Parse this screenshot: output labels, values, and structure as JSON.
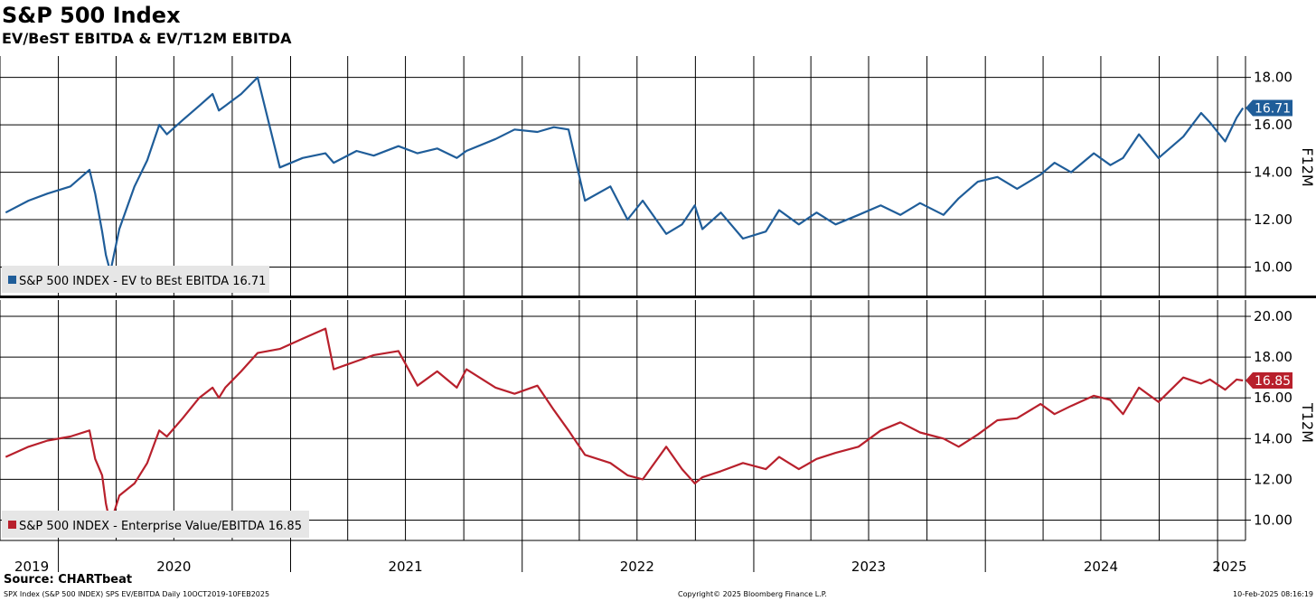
{
  "title": "S&P 500 Index",
  "subtitle": "EV/BeST EBITDA & EV/T12M EBITDA",
  "source": "Source: CHARTbeat",
  "footer": {
    "left": "SPX Index (S&P 500 INDEX) SPS EV/EBITDA  Daily 10OCT2019-10FEB2025",
    "center": "Copyright© 2025 Bloomberg Finance L.P.",
    "right": "10-Feb-2025 08:16:19"
  },
  "colors": {
    "top": "#1f5d99",
    "bottom": "#b8202c"
  },
  "chart_data": [
    {
      "type": "line",
      "axis_title": "F12M",
      "ylim": [
        8.8,
        18.9
      ],
      "yticks": [
        "18.00",
        "16.00",
        "14.00",
        "12.00",
        "10.00"
      ],
      "ytick_values": [
        18,
        16,
        14,
        12,
        10
      ],
      "grid": true,
      "legend": "S&P 500 INDEX - EV to BEst EBITDA 16.71",
      "last_value_label": "16.71",
      "series": [
        {
          "name": "S&P 500 INDEX - EV to BEst EBITDA",
          "x": [
            "2019-10-10",
            "2019-11-15",
            "2019-12-15",
            "2020-01-20",
            "2020-02-19",
            "2020-02-28",
            "2020-03-10",
            "2020-03-16",
            "2020-03-23",
            "2020-04-06",
            "2020-04-30",
            "2020-05-20",
            "2020-06-08",
            "2020-06-20",
            "2020-07-15",
            "2020-08-10",
            "2020-08-31",
            "2020-09-10",
            "2020-09-20",
            "2020-10-15",
            "2020-11-10",
            "2020-12-15",
            "2021-01-20",
            "2021-02-25",
            "2021-03-10",
            "2021-04-15",
            "2021-05-12",
            "2021-06-20",
            "2021-07-20",
            "2021-08-20",
            "2021-09-20",
            "2021-10-05",
            "2021-11-20",
            "2021-12-20",
            "2022-01-25",
            "2022-02-20",
            "2022-03-15",
            "2022-04-10",
            "2022-05-20",
            "2022-06-16",
            "2022-07-10",
            "2022-08-16",
            "2022-09-10",
            "2022-09-30",
            "2022-10-12",
            "2022-11-10",
            "2022-12-15",
            "2023-01-20",
            "2023-02-10",
            "2023-03-13",
            "2023-04-10",
            "2023-05-10",
            "2023-06-15",
            "2023-07-20",
            "2023-08-20",
            "2023-09-20",
            "2023-10-27",
            "2023-11-20",
            "2023-12-20",
            "2024-01-20",
            "2024-02-20",
            "2024-03-28",
            "2024-04-19",
            "2024-05-15",
            "2024-06-20",
            "2024-07-16",
            "2024-08-05",
            "2024-08-30",
            "2024-09-30",
            "2024-11-08",
            "2024-12-06",
            "2024-12-20",
            "2025-01-13",
            "2025-01-31",
            "2025-02-10"
          ],
          "y": [
            12.3,
            12.8,
            13.1,
            13.4,
            14.1,
            13.1,
            11.5,
            10.5,
            9.8,
            11.6,
            13.4,
            14.5,
            16.0,
            15.6,
            16.2,
            16.8,
            17.3,
            16.6,
            16.8,
            17.3,
            18.0,
            14.2,
            14.6,
            14.8,
            14.4,
            14.9,
            14.7,
            15.1,
            14.8,
            15.0,
            14.6,
            14.9,
            15.4,
            15.8,
            15.7,
            15.9,
            15.8,
            12.8,
            13.4,
            12.0,
            12.8,
            11.4,
            11.8,
            12.6,
            11.6,
            12.3,
            11.2,
            11.5,
            12.4,
            11.8,
            12.3,
            11.8,
            12.2,
            12.6,
            12.2,
            12.7,
            12.2,
            12.9,
            13.6,
            13.8,
            13.3,
            13.9,
            14.4,
            14.0,
            14.8,
            14.3,
            14.6,
            15.6,
            14.6,
            15.5,
            16.5,
            16.1,
            15.3,
            16.3,
            16.71
          ]
        }
      ]
    },
    {
      "type": "line",
      "axis_title": "T12M",
      "ylim": [
        9.0,
        20.8
      ],
      "yticks": [
        "20.00",
        "18.00",
        "16.00",
        "14.00",
        "12.00",
        "10.00"
      ],
      "ytick_values": [
        20,
        18,
        16,
        14,
        12,
        10
      ],
      "grid": true,
      "legend": "S&P 500 INDEX - Enterprise Value/EBITDA 16.85",
      "last_value_label": "16.85",
      "series": [
        {
          "name": "S&P 500 INDEX - Enterprise Value/EBITDA",
          "x": [
            "2019-10-10",
            "2019-11-15",
            "2019-12-15",
            "2020-01-20",
            "2020-02-19",
            "2020-02-28",
            "2020-03-10",
            "2020-03-16",
            "2020-03-23",
            "2020-04-06",
            "2020-04-30",
            "2020-05-20",
            "2020-06-08",
            "2020-06-20",
            "2020-07-15",
            "2020-08-10",
            "2020-08-31",
            "2020-09-10",
            "2020-09-20",
            "2020-10-15",
            "2020-11-10",
            "2020-12-15",
            "2021-01-20",
            "2021-02-25",
            "2021-03-10",
            "2021-04-15",
            "2021-05-12",
            "2021-06-20",
            "2021-07-20",
            "2021-08-20",
            "2021-09-20",
            "2021-10-05",
            "2021-11-20",
            "2021-12-20",
            "2022-01-25",
            "2022-02-20",
            "2022-03-15",
            "2022-04-10",
            "2022-05-20",
            "2022-06-16",
            "2022-07-10",
            "2022-08-16",
            "2022-09-10",
            "2022-09-30",
            "2022-10-12",
            "2022-11-10",
            "2022-12-15",
            "2023-01-20",
            "2023-02-10",
            "2023-03-13",
            "2023-04-10",
            "2023-05-10",
            "2023-06-15",
            "2023-07-20",
            "2023-08-20",
            "2023-09-20",
            "2023-10-27",
            "2023-11-20",
            "2023-12-20",
            "2024-01-20",
            "2024-02-20",
            "2024-03-28",
            "2024-04-19",
            "2024-05-15",
            "2024-06-20",
            "2024-07-16",
            "2024-08-05",
            "2024-08-30",
            "2024-09-30",
            "2024-11-08",
            "2024-12-06",
            "2024-12-20",
            "2025-01-13",
            "2025-01-31",
            "2025-02-10"
          ],
          "y": [
            13.1,
            13.6,
            13.9,
            14.1,
            14.4,
            13.0,
            12.2,
            10.8,
            9.8,
            11.2,
            11.8,
            12.8,
            14.4,
            14.1,
            15.0,
            16.0,
            16.5,
            16.0,
            16.5,
            17.3,
            18.2,
            18.4,
            18.9,
            19.4,
            17.4,
            17.8,
            18.1,
            18.3,
            16.6,
            17.3,
            16.5,
            17.4,
            16.5,
            16.2,
            16.6,
            15.4,
            14.4,
            13.2,
            12.8,
            12.2,
            12.0,
            13.6,
            12.5,
            11.8,
            12.1,
            12.4,
            12.8,
            12.5,
            13.1,
            12.5,
            13.0,
            13.3,
            13.6,
            14.4,
            14.8,
            14.3,
            14.0,
            13.6,
            14.2,
            14.9,
            15.0,
            15.7,
            15.2,
            15.6,
            16.1,
            15.9,
            15.2,
            16.5,
            15.8,
            17.0,
            16.7,
            16.9,
            16.4,
            16.9,
            16.85
          ]
        }
      ]
    }
  ],
  "x_axis": {
    "year_labels": [
      "2019",
      "2020",
      "2021",
      "2022",
      "2023",
      "2024",
      "2025"
    ],
    "year_dates": [
      "2019-11-20",
      "2020-07-01",
      "2021-07-01",
      "2022-07-01",
      "2023-07-01",
      "2024-07-01",
      "2025-01-20"
    ],
    "grid_dates": [
      "2019-10-01",
      "2020-01-01",
      "2020-04-01",
      "2020-07-01",
      "2020-10-01",
      "2021-01-01",
      "2021-04-01",
      "2021-07-01",
      "2021-10-01",
      "2022-01-01",
      "2022-04-01",
      "2022-07-01",
      "2022-10-01",
      "2023-01-01",
      "2023-04-01",
      "2023-07-01",
      "2023-10-01",
      "2024-01-01",
      "2024-04-01",
      "2024-07-01",
      "2024-10-01",
      "2025-01-01"
    ],
    "year_divider_dates": [
      "2020-01-01",
      "2021-01-01",
      "2022-01-01",
      "2023-01-01",
      "2024-01-01",
      "2025-01-01"
    ]
  }
}
